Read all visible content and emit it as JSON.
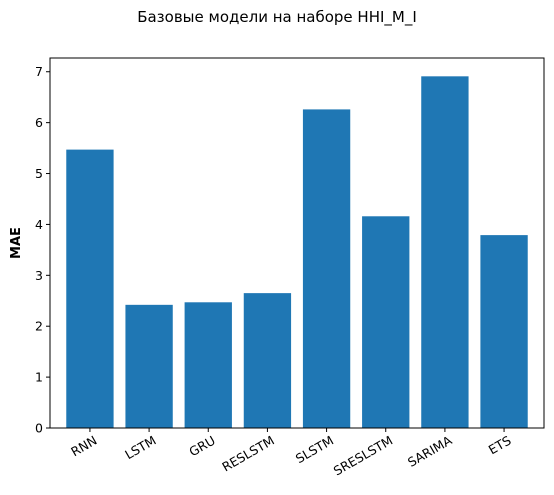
{
  "chart_data": {
    "type": "bar",
    "title": "Базовые модели на наборе HHI_M_I",
    "xlabel": "",
    "ylabel": "MAE",
    "categories": [
      "RNN",
      "LSTM",
      "GRU",
      "RESLSTM",
      "SLSTM",
      "SRESLSTM",
      "SARIMA",
      "ETS"
    ],
    "values": [
      5.47,
      2.42,
      2.47,
      2.65,
      6.26,
      4.16,
      6.91,
      3.79
    ],
    "ylim": [
      0,
      7.27
    ],
    "yticks": [
      0,
      1,
      2,
      3,
      4,
      5,
      6,
      7
    ],
    "bar_color": "#1f77b4",
    "grid": false,
    "xtick_rotation_deg": 30
  }
}
